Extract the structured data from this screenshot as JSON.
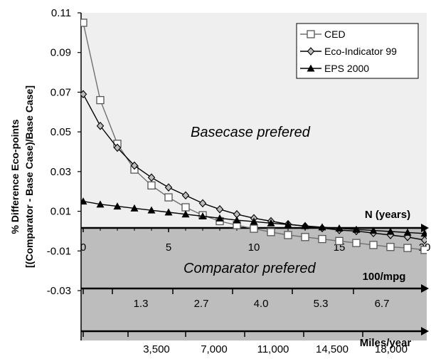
{
  "chart_data": {
    "type": "line",
    "title": "",
    "ylabel_line1": "% Difference Eco-points",
    "ylabel_line2": "[(Comparator - Base Case)/Base Case]",
    "ylim": [
      -0.03,
      0.11
    ],
    "yticks": [
      "0.11",
      "0.09",
      "0.07",
      "0.05",
      "0.03",
      "0.01",
      "-0.01",
      "-0.03"
    ],
    "xlim": [
      0,
      20
    ],
    "axes": [
      {
        "label": "N (years)",
        "ticks": [
          "0",
          "5",
          "10",
          "15",
          "20"
        ]
      },
      {
        "label": "100/mpg",
        "ticks": [
          "1.3",
          "2.7",
          "4.0",
          "5.3",
          "6.7"
        ]
      },
      {
        "label": "Miles/year",
        "ticks": [
          "3,500",
          "7,000",
          "11,000",
          "14,500",
          "18,000"
        ]
      }
    ],
    "regions": {
      "upper": "Basecase prefered",
      "lower": "Comparator prefered"
    },
    "legend": {
      "position": "top-right"
    },
    "x": [
      0,
      1,
      2,
      3,
      4,
      5,
      6,
      7,
      8,
      9,
      10,
      11,
      12,
      13,
      14,
      15,
      16,
      17,
      18,
      19,
      20
    ],
    "series": [
      {
        "name": "CED",
        "marker": "open-square",
        "values": [
          0.105,
          0.066,
          0.044,
          0.031,
          0.023,
          0.017,
          0.012,
          0.008,
          0.005,
          0.003,
          0.0012,
          -0.0005,
          -0.002,
          -0.003,
          -0.004,
          -0.005,
          -0.006,
          -0.007,
          -0.008,
          -0.0085,
          -0.0095
        ]
      },
      {
        "name": "Eco-Indicator 99",
        "marker": "diamond",
        "values": [
          0.069,
          0.053,
          0.042,
          0.033,
          0.027,
          0.022,
          0.018,
          0.014,
          0.011,
          0.0085,
          0.0065,
          0.005,
          0.0035,
          0.0025,
          0.0015,
          0.0005,
          0.0,
          -0.001,
          -0.002,
          -0.003,
          -0.0045
        ]
      },
      {
        "name": "EPS 2000",
        "marker": "filled-triangle",
        "values": [
          0.015,
          0.0135,
          0.0125,
          0.0115,
          0.0105,
          0.0095,
          0.0085,
          0.0075,
          0.0065,
          0.0055,
          0.0048,
          0.004,
          0.0033,
          0.0026,
          0.002,
          0.0014,
          0.0008,
          0.0003,
          -0.0002,
          -0.0007,
          -0.0012
        ]
      }
    ]
  }
}
